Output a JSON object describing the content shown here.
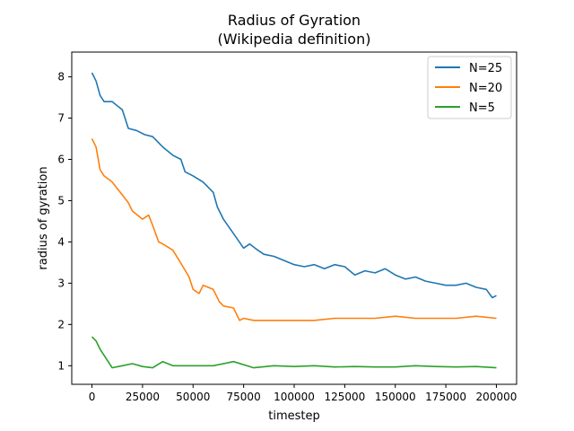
{
  "chart_data": {
    "type": "line",
    "title": "Radius of Gyration",
    "subtitle": "(Wikipedia definition)",
    "xlabel": "timestep",
    "ylabel": "radius of gyration",
    "xlim": [
      -10000,
      210000
    ],
    "ylim": [
      0.55,
      8.6
    ],
    "xticks": [
      0,
      25000,
      50000,
      75000,
      100000,
      125000,
      150000,
      175000,
      200000
    ],
    "xtick_labels": [
      "0",
      "25000",
      "50000",
      "75000",
      "100000",
      "125000",
      "150000",
      "175000",
      "200000"
    ],
    "yticks": [
      1,
      2,
      3,
      4,
      5,
      6,
      7,
      8
    ],
    "ytick_labels": [
      "1",
      "2",
      "3",
      "4",
      "5",
      "6",
      "7",
      "8"
    ],
    "grid": false,
    "legend_position": "top-right",
    "series": [
      {
        "name": "N=25",
        "color": "#1f77b4",
        "x": [
          0,
          2000,
          4000,
          6000,
          10000,
          15000,
          18000,
          22000,
          26000,
          30000,
          35000,
          40000,
          44000,
          46000,
          50000,
          55000,
          60000,
          62000,
          65000,
          70000,
          75000,
          78000,
          82000,
          85000,
          90000,
          95000,
          100000,
          105000,
          110000,
          115000,
          120000,
          125000,
          130000,
          135000,
          140000,
          145000,
          150000,
          155000,
          160000,
          165000,
          170000,
          175000,
          180000,
          185000,
          190000,
          195000,
          198000,
          200000
        ],
        "y": [
          8.1,
          7.9,
          7.55,
          7.4,
          7.4,
          7.2,
          6.75,
          6.7,
          6.6,
          6.55,
          6.3,
          6.1,
          6.0,
          5.7,
          5.6,
          5.45,
          5.2,
          4.85,
          4.55,
          4.2,
          3.85,
          3.95,
          3.8,
          3.7,
          3.65,
          3.55,
          3.45,
          3.4,
          3.45,
          3.35,
          3.45,
          3.4,
          3.2,
          3.3,
          3.25,
          3.35,
          3.2,
          3.1,
          3.15,
          3.05,
          3.0,
          2.95,
          2.95,
          3.0,
          2.9,
          2.85,
          2.65,
          2.7
        ]
      },
      {
        "name": "N=20",
        "color": "#ff7f0e",
        "x": [
          0,
          2000,
          4000,
          6000,
          10000,
          14000,
          18000,
          20000,
          25000,
          28000,
          30000,
          33000,
          35000,
          40000,
          45000,
          48000,
          50000,
          53000,
          55000,
          60000,
          63000,
          65000,
          70000,
          73000,
          75000,
          80000,
          90000,
          100000,
          110000,
          120000,
          130000,
          140000,
          150000,
          160000,
          170000,
          180000,
          190000,
          200000
        ],
        "y": [
          6.5,
          6.3,
          5.75,
          5.6,
          5.45,
          5.2,
          4.95,
          4.75,
          4.55,
          4.65,
          4.4,
          4.0,
          3.95,
          3.8,
          3.4,
          3.15,
          2.85,
          2.75,
          2.95,
          2.85,
          2.55,
          2.45,
          2.4,
          2.1,
          2.15,
          2.1,
          2.1,
          2.1,
          2.1,
          2.15,
          2.15,
          2.15,
          2.2,
          2.15,
          2.15,
          2.15,
          2.2,
          2.15
        ]
      },
      {
        "name": "N=5",
        "color": "#2ca02c",
        "x": [
          0,
          2000,
          4000,
          6000,
          8000,
          10000,
          15000,
          20000,
          25000,
          30000,
          35000,
          40000,
          50000,
          60000,
          70000,
          80000,
          90000,
          100000,
          110000,
          120000,
          130000,
          140000,
          150000,
          160000,
          170000,
          180000,
          190000,
          200000
        ],
        "y": [
          1.7,
          1.6,
          1.4,
          1.25,
          1.1,
          0.95,
          1.0,
          1.05,
          0.98,
          0.95,
          1.1,
          1.0,
          1.0,
          1.0,
          1.1,
          0.95,
          1.0,
          0.98,
          1.0,
          0.97,
          0.98,
          0.97,
          0.97,
          1.0,
          0.98,
          0.97,
          0.98,
          0.95
        ]
      }
    ]
  }
}
